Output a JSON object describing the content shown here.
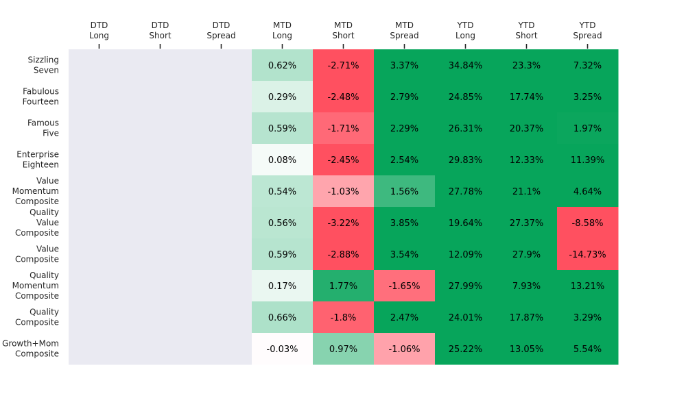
{
  "chart_data": {
    "type": "heatmap",
    "title": "",
    "columns": [
      "DTD\nLong",
      "DTD\nShort",
      "DTD\nSpread",
      "MTD\nLong",
      "MTD\nShort",
      "MTD\nSpread",
      "YTD\nLong",
      "YTD\nShort",
      "YTD\nSpread"
    ],
    "rows": [
      "Sizzling\nSeven",
      "Fabulous\nFourteen",
      "Famous\nFive",
      "Enterprise\nEighteen",
      "Value\nMomentum\nComposite",
      "Quality\nValue\nComposite",
      "Value\nComposite",
      "Quality\nMomentum\nComposite",
      "Quality\nComposite",
      "Growth+Mom\nComposite"
    ],
    "values": [
      [
        null,
        null,
        null,
        0.62,
        -2.71,
        3.37,
        34.84,
        23.3,
        7.32
      ],
      [
        null,
        null,
        null,
        0.29,
        -2.48,
        2.79,
        24.85,
        17.74,
        3.25
      ],
      [
        null,
        null,
        null,
        0.59,
        -1.71,
        2.29,
        26.31,
        20.37,
        1.97
      ],
      [
        null,
        null,
        null,
        0.08,
        -2.45,
        2.54,
        29.83,
        12.33,
        11.39
      ],
      [
        null,
        null,
        null,
        0.54,
        -1.03,
        1.56,
        27.78,
        21.1,
        4.64
      ],
      [
        null,
        null,
        null,
        0.56,
        -3.22,
        3.85,
        19.64,
        27.37,
        -8.58
      ],
      [
        null,
        null,
        null,
        0.59,
        -2.88,
        3.54,
        12.09,
        27.9,
        -14.73
      ],
      [
        null,
        null,
        null,
        0.17,
        1.77,
        -1.65,
        27.99,
        7.93,
        13.21
      ],
      [
        null,
        null,
        null,
        0.66,
        -1.8,
        2.47,
        24.01,
        17.87,
        3.29
      ],
      [
        null,
        null,
        null,
        -0.03,
        0.97,
        -1.06,
        25.22,
        13.05,
        5.54
      ]
    ],
    "value_suffix": "%",
    "x_axis_position": "top",
    "colorbar": false,
    "colors": {
      "empty": "#eaeaf2",
      "positive_max": "#07a55b",
      "negative_max": "#ff5060",
      "neutral": "#ffffff",
      "text": "#000000",
      "axis_text": "#262626"
    }
  }
}
